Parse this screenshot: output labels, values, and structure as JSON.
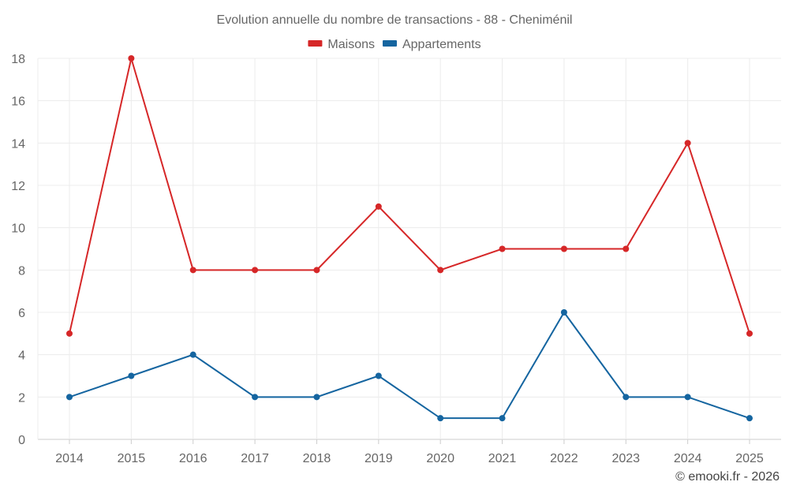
{
  "chart_data": {
    "type": "line",
    "title": "Evolution annuelle du nombre de transactions - 88 - Cheniménil",
    "categories": [
      "2014",
      "2015",
      "2016",
      "2017",
      "2018",
      "2019",
      "2020",
      "2021",
      "2022",
      "2023",
      "2024",
      "2025"
    ],
    "series": [
      {
        "name": "Maisons",
        "color": "#d62728",
        "values": [
          5,
          18,
          8,
          8,
          8,
          11,
          8,
          9,
          9,
          9,
          14,
          5
        ]
      },
      {
        "name": "Appartements",
        "color": "#1565a0",
        "values": [
          2,
          3,
          4,
          2,
          2,
          3,
          1,
          1,
          6,
          2,
          2,
          1
        ]
      }
    ],
    "ylim": [
      0,
      18
    ],
    "yticks": [
      "0",
      "2",
      "4",
      "6",
      "8",
      "10",
      "12",
      "14",
      "16",
      "18"
    ],
    "xlabel": "",
    "ylabel": "",
    "grid": true,
    "legend_position": "top-center"
  },
  "credit": "© emooki.fr - 2026"
}
